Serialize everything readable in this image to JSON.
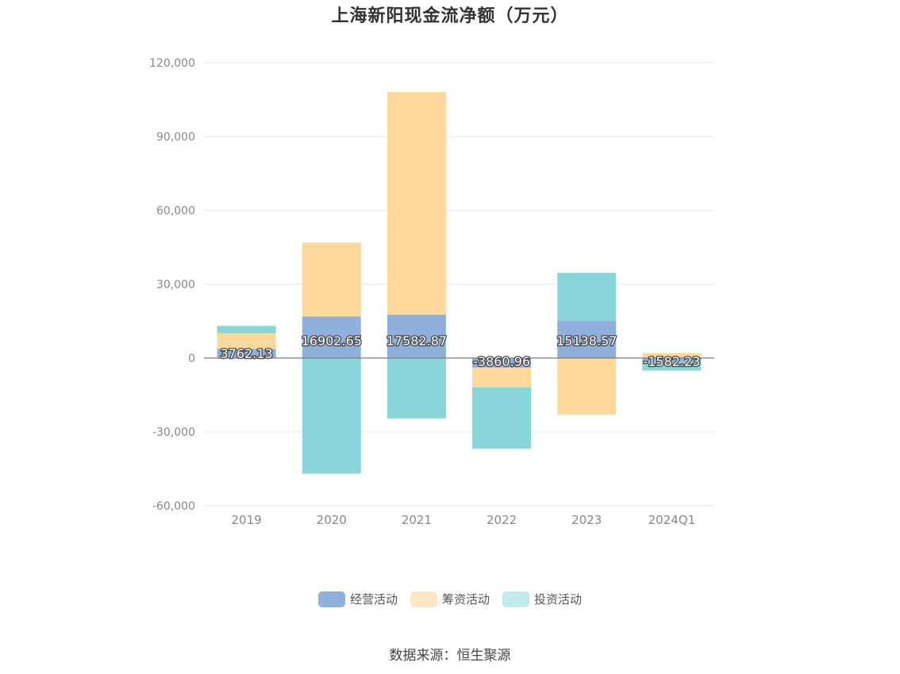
{
  "chart_data": {
    "type": "bar",
    "stacked": true,
    "title": "上海新阳现金流净额（万元）",
    "categories": [
      "2019",
      "2020",
      "2021",
      "2022",
      "2023",
      "2024Q1"
    ],
    "series": [
      {
        "name": "经营活动",
        "color": "#8fafdc",
        "values": [
          3762.13,
          16902.65,
          17582.87,
          -3860.96,
          15138.57,
          -1582.23
        ]
      },
      {
        "name": "筹资活动",
        "color": "#fed99b",
        "values": [
          6300,
          30000,
          90500,
          -8000,
          -23000,
          2000
        ]
      },
      {
        "name": "投资活动",
        "color": "#88d6da",
        "values": [
          3000,
          -47000,
          -24500,
          -25000,
          19500,
          -3500
        ]
      }
    ],
    "data_labels": [
      "3762.13",
      "16902.65",
      "17582.87",
      "-3860.96",
      "15138.57",
      "-1582.23"
    ],
    "y_ticks": [
      "120,000",
      "90,000",
      "60,000",
      "30,000",
      "0",
      "-30,000",
      "-60,000"
    ],
    "ylim": [
      -60000,
      120000
    ],
    "grid": true,
    "legend_position": "bottom"
  },
  "legend": {
    "items": [
      {
        "label": "经营活动",
        "color": "#8fafdc"
      },
      {
        "label": "筹资活动",
        "color": "#fee6c4"
      },
      {
        "label": "投资活动",
        "color": "#c3eaec"
      }
    ]
  },
  "source": "数据来源：恒生聚源"
}
